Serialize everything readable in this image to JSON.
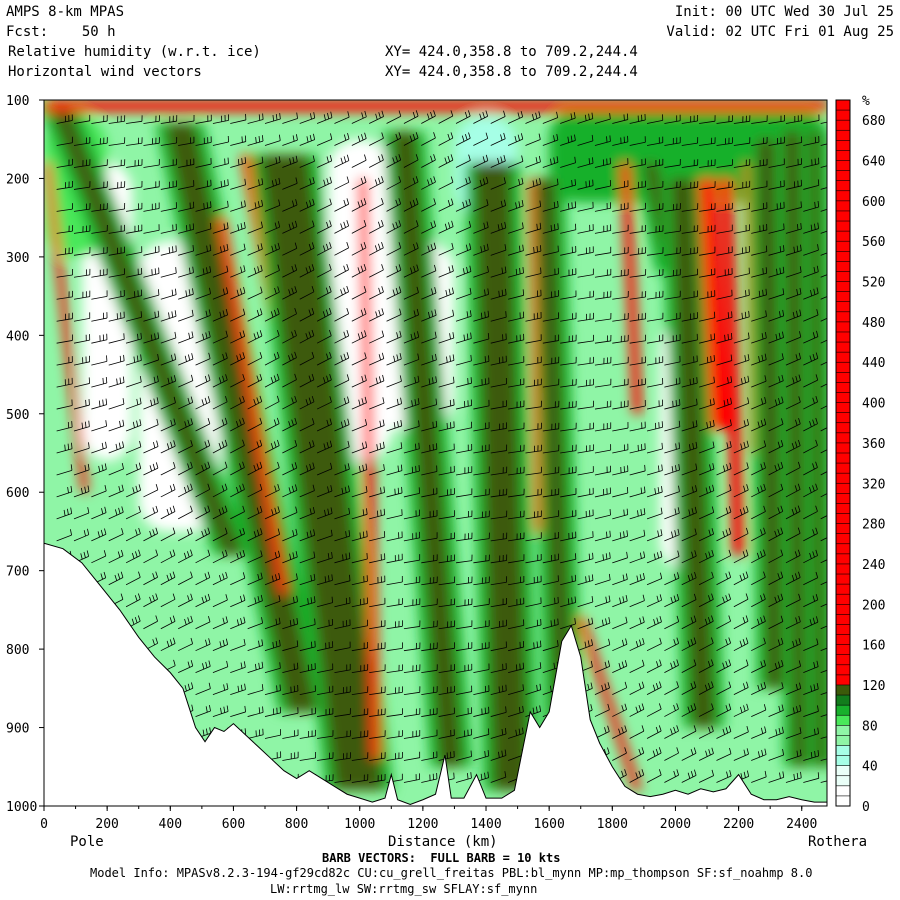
{
  "header": {
    "model": "AMPS 8-km MPAS",
    "fcst": "Fcst:    50 h",
    "field1": "Relative humidity (w.r.t. ice)",
    "field2": "Horizontal wind vectors",
    "xy1": "XY= 424.0,358.8 to 709.2,244.4",
    "xy2": "XY= 424.0,358.8 to 709.2,244.4",
    "init": "Init: 00 UTC Wed 30 Jul 25",
    "valid": "Valid: 02 UTC Fri 01 Aug 25"
  },
  "footer": {
    "pole": "Pole",
    "rothera": "Rothera",
    "xlabel": "Distance (km)",
    "barb": "BARB VECTORS:  FULL BARB = 10 kts",
    "model_info": "Model Info: MPASv8.2.3-194-gf29cd82c CU:cu_grell_freitas PBL:bl_mynn MP:mp_thompson SF:sf_noahmp 8.0",
    "model_info2": "LW:rrtmg_lw SW:rrtmg_sw SFLAY:sf_mynn"
  },
  "chart_data": {
    "type": "heatmap",
    "title": "Relative humidity (w.r.t. ice)",
    "xlabel": "Distance (km)",
    "ylabel": "",
    "xlim": [
      0,
      2480
    ],
    "ylim": [
      1000,
      100
    ],
    "xticks": [
      0,
      200,
      400,
      600,
      800,
      1000,
      1200,
      1400,
      1600,
      1800,
      2000,
      2200,
      2400
    ],
    "yticks": [
      100,
      200,
      300,
      400,
      500,
      600,
      700,
      800,
      900,
      1000
    ],
    "colorbar": {
      "unit": "%",
      "ticks": [
        680,
        640,
        600,
        560,
        520,
        480,
        440,
        400,
        360,
        320,
        280,
        240,
        200,
        160,
        120,
        80,
        40,
        0
      ],
      "levels": [
        {
          "min": 0,
          "max": 20,
          "color": "#ffffff"
        },
        {
          "min": 20,
          "max": 40,
          "color": "#eafff8"
        },
        {
          "min": 40,
          "max": 60,
          "color": "#a6ffe6"
        },
        {
          "min": 60,
          "max": 80,
          "color": "#8ff5a6"
        },
        {
          "min": 80,
          "max": 90,
          "color": "#49e85a"
        },
        {
          "min": 90,
          "max": 100,
          "color": "#18b02c"
        },
        {
          "min": 100,
          "max": 110,
          "color": "#127c1c"
        },
        {
          "min": 110,
          "max": 120,
          "color": "#3c5a0a"
        },
        {
          "min": 120,
          "max": 700,
          "color": "#ff0000"
        }
      ]
    },
    "terrain_profile": [
      {
        "x": 0,
        "p": 665
      },
      {
        "x": 60,
        "p": 672
      },
      {
        "x": 120,
        "p": 690
      },
      {
        "x": 180,
        "p": 720
      },
      {
        "x": 240,
        "p": 750
      },
      {
        "x": 300,
        "p": 785
      },
      {
        "x": 350,
        "p": 810
      },
      {
        "x": 400,
        "p": 830
      },
      {
        "x": 440,
        "p": 850
      },
      {
        "x": 460,
        "p": 875
      },
      {
        "x": 480,
        "p": 900
      },
      {
        "x": 510,
        "p": 918
      },
      {
        "x": 540,
        "p": 900
      },
      {
        "x": 570,
        "p": 905
      },
      {
        "x": 600,
        "p": 895
      },
      {
        "x": 640,
        "p": 910
      },
      {
        "x": 680,
        "p": 925
      },
      {
        "x": 720,
        "p": 940
      },
      {
        "x": 760,
        "p": 955
      },
      {
        "x": 800,
        "p": 965
      },
      {
        "x": 840,
        "p": 955
      },
      {
        "x": 880,
        "p": 965
      },
      {
        "x": 920,
        "p": 975
      },
      {
        "x": 960,
        "p": 985
      },
      {
        "x": 1000,
        "p": 990
      },
      {
        "x": 1040,
        "p": 995
      },
      {
        "x": 1080,
        "p": 990
      },
      {
        "x": 1100,
        "p": 960
      },
      {
        "x": 1120,
        "p": 992
      },
      {
        "x": 1160,
        "p": 998
      },
      {
        "x": 1200,
        "p": 992
      },
      {
        "x": 1240,
        "p": 985
      },
      {
        "x": 1270,
        "p": 935
      },
      {
        "x": 1290,
        "p": 990
      },
      {
        "x": 1330,
        "p": 990
      },
      {
        "x": 1370,
        "p": 960
      },
      {
        "x": 1400,
        "p": 990
      },
      {
        "x": 1450,
        "p": 990
      },
      {
        "x": 1490,
        "p": 980
      },
      {
        "x": 1510,
        "p": 940
      },
      {
        "x": 1540,
        "p": 880
      },
      {
        "x": 1570,
        "p": 900
      },
      {
        "x": 1600,
        "p": 880
      },
      {
        "x": 1640,
        "p": 790
      },
      {
        "x": 1670,
        "p": 770
      },
      {
        "x": 1700,
        "p": 810
      },
      {
        "x": 1730,
        "p": 890
      },
      {
        "x": 1760,
        "p": 920
      },
      {
        "x": 1800,
        "p": 950
      },
      {
        "x": 1840,
        "p": 975
      },
      {
        "x": 1880,
        "p": 985
      },
      {
        "x": 1920,
        "p": 988
      },
      {
        "x": 1960,
        "p": 985
      },
      {
        "x": 2000,
        "p": 980
      },
      {
        "x": 2040,
        "p": 985
      },
      {
        "x": 2080,
        "p": 978
      },
      {
        "x": 2120,
        "p": 982
      },
      {
        "x": 2160,
        "p": 978
      },
      {
        "x": 2200,
        "p": 960
      },
      {
        "x": 2240,
        "p": 985
      },
      {
        "x": 2280,
        "p": 992
      },
      {
        "x": 2320,
        "p": 992
      },
      {
        "x": 2360,
        "p": 988
      },
      {
        "x": 2400,
        "p": 992
      },
      {
        "x": 2440,
        "p": 995
      },
      {
        "x": 2480,
        "p": 995
      }
    ],
    "bands": [
      {
        "top": [
          40,
          100
        ],
        "bottom": [
          600,
          680
        ],
        "width": 60,
        "color": "#3c5a0a"
      },
      {
        "top": [
          10,
          180
        ],
        "bottom": [
          130,
          600
        ],
        "width": 22,
        "color": "#ff0000"
      },
      {
        "top": [
          430,
          130
        ],
        "bottom": [
          820,
          880
        ],
        "width": 90,
        "color": "#3c5a0a"
      },
      {
        "top": [
          560,
          250
        ],
        "bottom": [
          760,
          730
        ],
        "width": 28,
        "color": "#ff0000"
      },
      {
        "top": [
          640,
          170
        ],
        "bottom": [
          920,
          810
        ],
        "width": 34,
        "color": "#ff0000"
      },
      {
        "top": [
          760,
          170
        ],
        "bottom": [
          1000,
          980
        ],
        "width": 150,
        "color": "#3c5a0a"
      },
      {
        "top": [
          1010,
          200
        ],
        "bottom": [
          1050,
          940
        ],
        "width": 30,
        "color": "#ff0000"
      },
      {
        "top": [
          1140,
          140
        ],
        "bottom": [
          1290,
          950
        ],
        "width": 70,
        "color": "#3c5a0a"
      },
      {
        "top": [
          1420,
          180
        ],
        "bottom": [
          1480,
          980
        ],
        "width": 110,
        "color": "#3c5a0a"
      },
      {
        "top": [
          1590,
          200
        ],
        "bottom": [
          1650,
          950
        ],
        "width": 55,
        "color": "#3c5a0a"
      },
      {
        "top": [
          1545,
          200
        ],
        "bottom": [
          1565,
          650
        ],
        "width": 18,
        "color": "#ff0000"
      },
      {
        "top": [
          1700,
          760
        ],
        "bottom": [
          1880,
          980
        ],
        "width": 26,
        "color": "#ff0000"
      },
      {
        "top": [
          1840,
          180
        ],
        "bottom": [
          1880,
          500
        ],
        "width": 30,
        "color": "#ff0000"
      },
      {
        "top": [
          1920,
          180
        ],
        "bottom": [
          1990,
          320
        ],
        "width": 40,
        "color": "#3c5a0a"
      },
      {
        "top": [
          2020,
          200
        ],
        "bottom": [
          2090,
          900
        ],
        "width": 70,
        "color": "#3c5a0a"
      },
      {
        "top": [
          2100,
          200
        ],
        "bottom": [
          2140,
          520
        ],
        "width": 55,
        "color": "#ff0000"
      },
      {
        "top": [
          2160,
          200
        ],
        "bottom": [
          2200,
          680
        ],
        "width": 40,
        "color": "#ff0000"
      },
      {
        "top": [
          2230,
          180
        ],
        "bottom": [
          2250,
          550
        ],
        "width": 24,
        "color": "#ff0000"
      },
      {
        "top": [
          2290,
          150
        ],
        "bottom": [
          2320,
          850
        ],
        "width": 60,
        "color": "#3c5a0a"
      },
      {
        "top": [
          2370,
          140
        ],
        "bottom": [
          2400,
          950
        ],
        "width": 50,
        "color": "#3c5a0a"
      },
      {
        "top": [
          2440,
          140
        ],
        "bottom": [
          2460,
          950
        ],
        "width": 30,
        "color": "#3c5a0a"
      }
    ]
  }
}
